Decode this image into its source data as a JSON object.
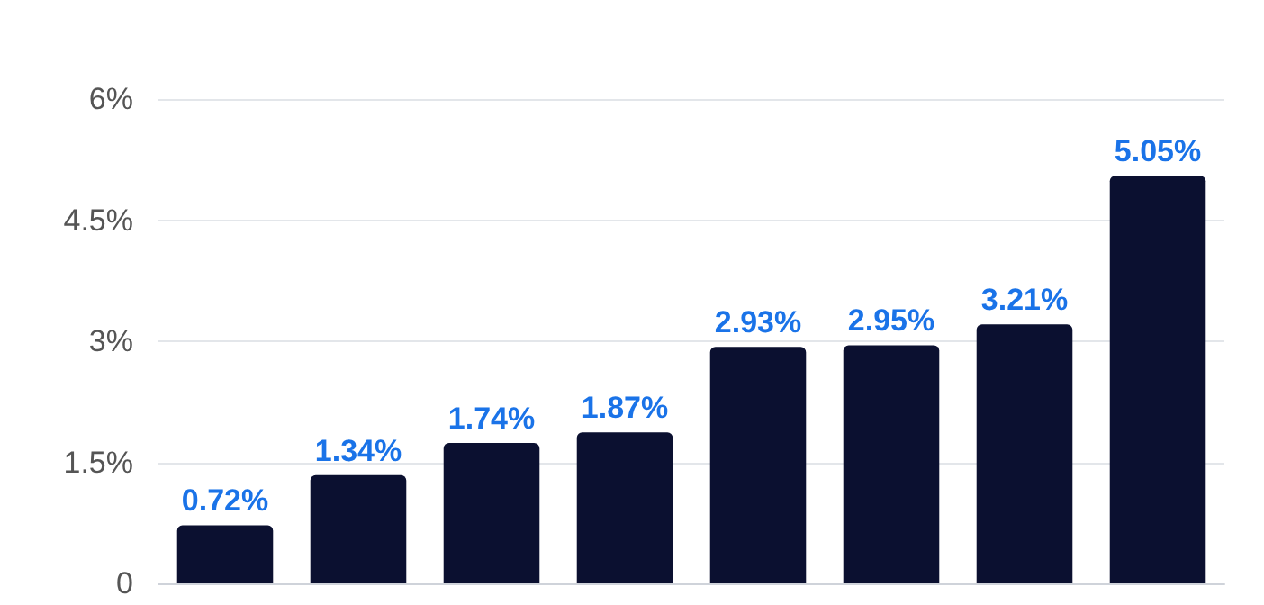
{
  "chart_data": {
    "type": "bar",
    "categories": [
      null,
      null,
      null,
      null,
      null,
      null,
      null,
      null
    ],
    "values": [
      0.72,
      1.34,
      1.74,
      1.87,
      2.93,
      2.95,
      3.21,
      5.05
    ],
    "value_labels": [
      "0.72%",
      "1.34%",
      "1.74%",
      "1.87%",
      "2.93%",
      "2.95%",
      "3.21%",
      "5.05%"
    ],
    "color": "#0b1030",
    "ylim": [
      0,
      6
    ],
    "yticks": [
      {
        "value": 0,
        "label": "0"
      },
      {
        "value": 1.5,
        "label": "1.5%"
      },
      {
        "value": 3,
        "label": "3%"
      },
      {
        "value": 4.5,
        "label": "4.5%"
      },
      {
        "value": 6,
        "label": "6%"
      }
    ],
    "grid": "y"
  }
}
